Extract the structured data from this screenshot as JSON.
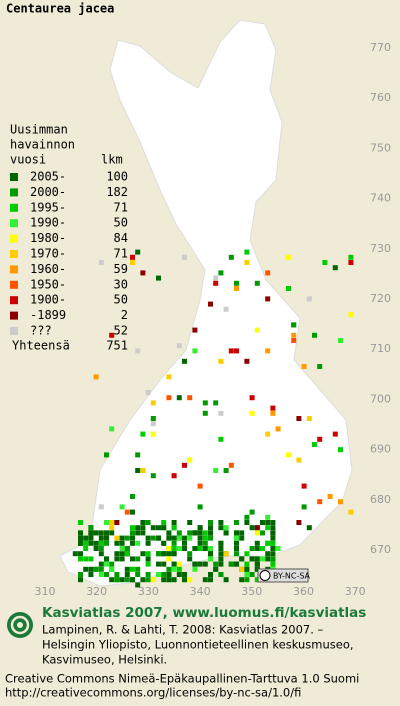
{
  "title": "Centaurea jacea",
  "legend": {
    "header": [
      "Uusimman",
      "havainnon",
      "vuosi"
    ],
    "count_header": "lkm",
    "rows": [
      {
        "label": "2005-",
        "count": 100,
        "color": "#006600"
      },
      {
        "label": "2000-",
        "count": 182,
        "color": "#009900"
      },
      {
        "label": "1995-",
        "count": 71,
        "color": "#00cc00"
      },
      {
        "label": "1990-",
        "count": 50,
        "color": "#33ee33"
      },
      {
        "label": "1980-",
        "count": 84,
        "color": "#ffff00"
      },
      {
        "label": "1970-",
        "count": 71,
        "color": "#ffcc00"
      },
      {
        "label": "1960-",
        "count": 59,
        "color": "#ff9900"
      },
      {
        "label": "1950-",
        "count": 30,
        "color": "#ff5500"
      },
      {
        "label": "1900-",
        "count": 50,
        "color": "#cc0000"
      },
      {
        "label": "-1899",
        "count": 2,
        "color": "#880000"
      },
      {
        "label": "???",
        "count": 52,
        "color": "#cccccc"
      }
    ],
    "total_label": "Yhteensä",
    "total": 751
  },
  "y_labels": [
    "770",
    "760",
    "750",
    "740",
    "730",
    "720",
    "710",
    "700",
    "690",
    "680",
    "670"
  ],
  "x_labels": [
    "310",
    "320",
    "330",
    "340",
    "350",
    "360",
    "370"
  ],
  "license_badge": "BY-NC-SA",
  "footer": {
    "heading": "Kasviatlas 2007, www.luomus.fi/kasviatlas",
    "citation": [
      "Lampinen, R. & Lahti, T. 2008: Kasviatlas 2007. –",
      "Helsingin Yliopisto, Luonnontieteellinen keskusmuseo,",
      "Kasvimuseo, Helsinki."
    ],
    "license": [
      "Creative Commons Nimeä-Epäkaupallinen-Tarttuva 1.0 Suomi",
      "http://creativecommons.org/licenses/by-nc-sa/1.0/fi"
    ]
  }
}
